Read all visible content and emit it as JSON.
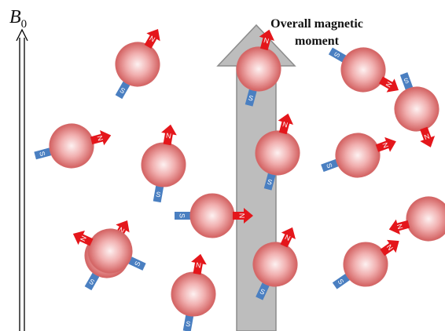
{
  "field_label": {
    "symbol": "B",
    "subscript": "0"
  },
  "moment_label": {
    "line1": "Overall magnetic",
    "line2": "moment"
  },
  "pole_labels": {
    "north": "N",
    "south": "S"
  },
  "colors": {
    "sphere_center": "#fbe3e3",
    "sphere_edge": "#c94848",
    "north": "#e4161b",
    "south": "#4a7fc1",
    "moment_arrow": "#bdbdbd"
  },
  "protons": [
    {
      "id": 1,
      "angle_deg": 60
    },
    {
      "id": 2,
      "angle_deg": -30
    },
    {
      "id": 3,
      "angle_deg": 75
    },
    {
      "id": 4,
      "angle_deg": -70
    },
    {
      "id": 5,
      "angle_deg": 15
    },
    {
      "id": 6,
      "angle_deg": 80
    },
    {
      "id": 7,
      "angle_deg": 75
    },
    {
      "id": 8,
      "angle_deg": 20
    },
    {
      "id": 9,
      "angle_deg": 0
    },
    {
      "id": 10,
      "angle_deg": 195
    },
    {
      "id": 11,
      "angle_deg": 60
    },
    {
      "id": 12,
      "angle_deg": 65
    },
    {
      "id": 13,
      "angle_deg": 80
    },
    {
      "id": 14,
      "angle_deg": 35
    },
    {
      "id": 15,
      "angle_deg": 155
    },
    {
      "id": 16,
      "angle_deg": 110
    }
  ]
}
